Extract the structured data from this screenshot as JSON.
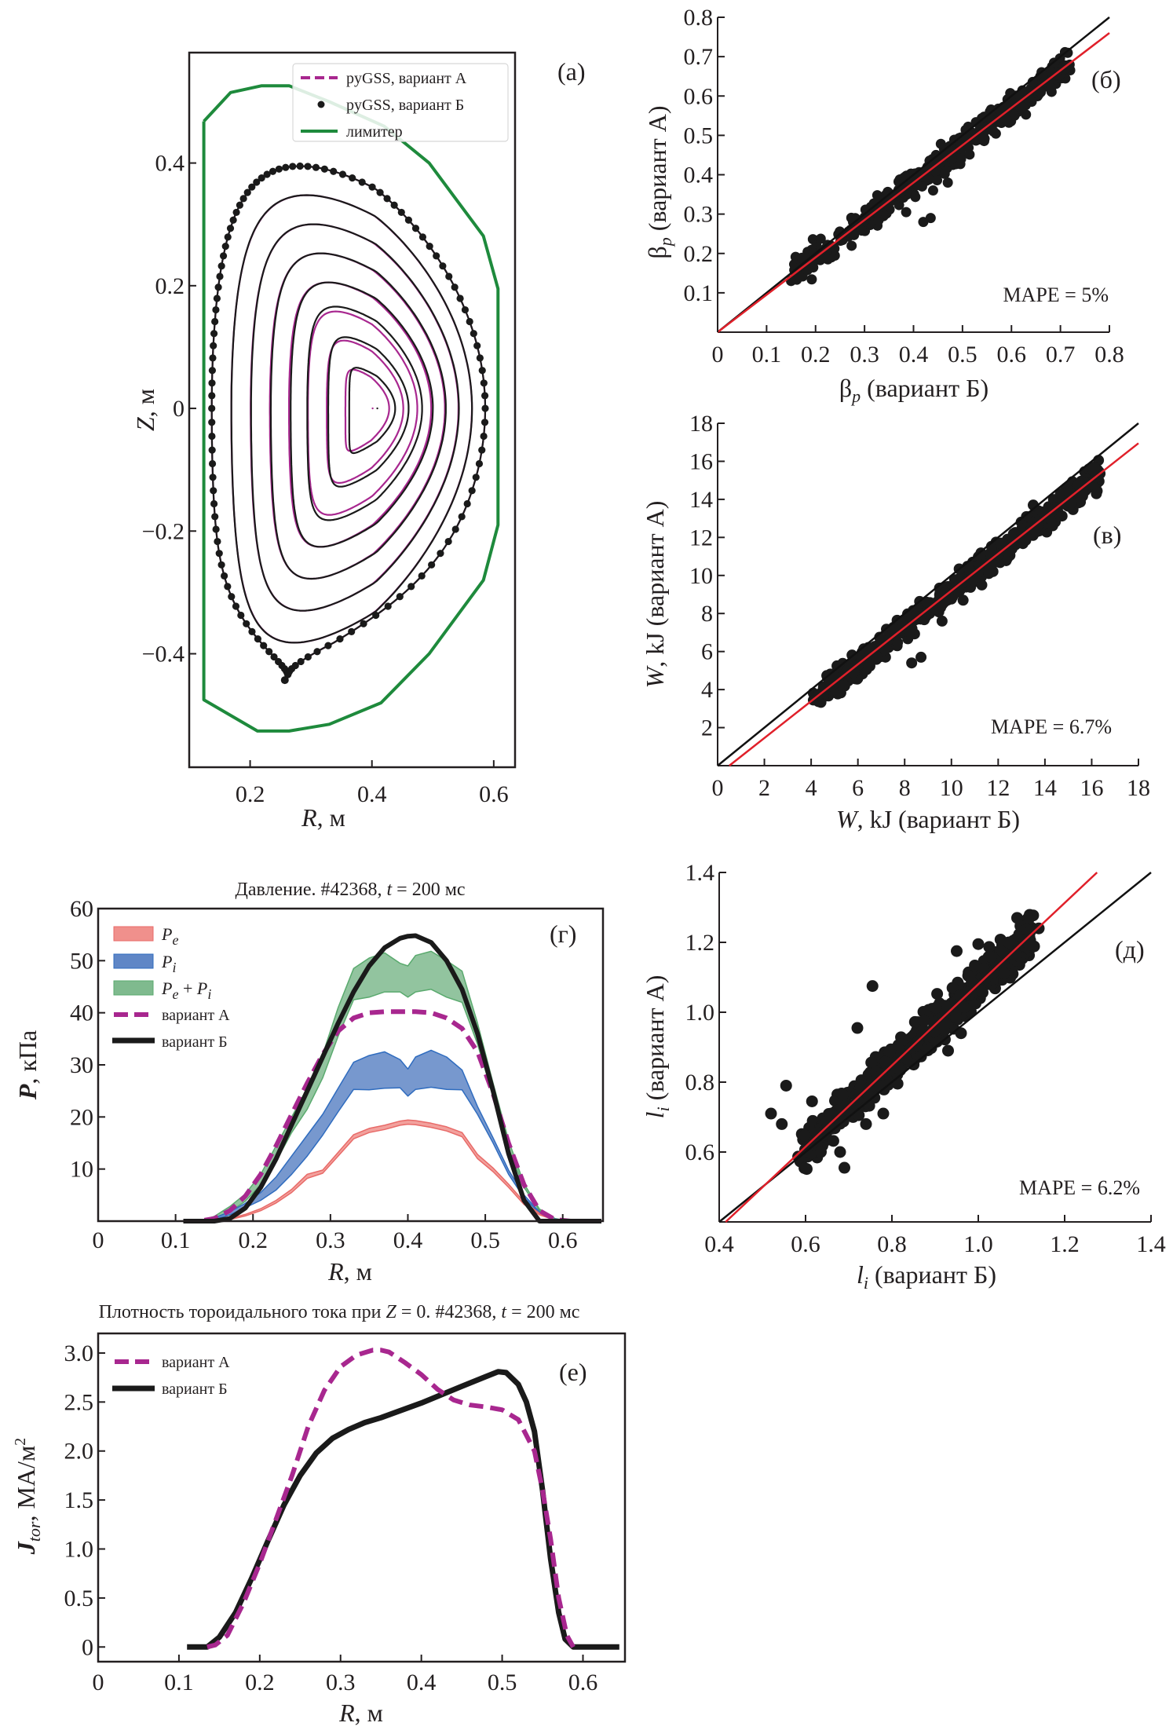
{
  "colors": {
    "variant_a": "#a8278f",
    "variant_b": "#1a1a1a",
    "limiter": "#1e8a3c",
    "fit": "#e0202a",
    "identity": "#111111",
    "scatter": "#1a1a1a",
    "pe_fill": "#f0908c",
    "pe_edge": "#e86a68",
    "pi_fill": "#5f86c6",
    "pi_edge": "#2f6cbf",
    "pepi_fill": "#7fba8e",
    "pepi_edge": "#5aaa6e"
  },
  "chart_data": [
    {
      "id": "a",
      "type": "line",
      "panel_label": "(a)",
      "title": "",
      "xlabel_italic": "R",
      "xlabel_rest": ", м",
      "ylabel_italic": "Z",
      "ylabel_rest": ", м",
      "xlim": [
        0.1,
        0.635
      ],
      "ylim": [
        -0.585,
        0.58
      ],
      "xticks": [
        0.2,
        0.4,
        0.6
      ],
      "xtick_labels": [
        "0.2",
        "0.4",
        "0.6"
      ],
      "yticks": [
        -0.4,
        -0.2,
        0,
        0.2,
        0.4
      ],
      "ytick_labels": [
        "−0.4",
        "−0.2",
        "0",
        "0.2",
        "0.4"
      ],
      "legend": [
        {
          "label": "pyGSS, вариант А",
          "style": "dashed"
        },
        {
          "label": "pyGSS, вариант Б",
          "style": "dots"
        },
        {
          "label": "лимитер",
          "style": "solid"
        }
      ],
      "legend_placement": "top-right",
      "limiter": [
        [
          0.124,
          0.468
        ],
        [
          0.168,
          0.515
        ],
        [
          0.219,
          0.526
        ],
        [
          0.264,
          0.526
        ],
        [
          0.33,
          0.5
        ],
        [
          0.42,
          0.46
        ],
        [
          0.494,
          0.4
        ],
        [
          0.583,
          0.281
        ],
        [
          0.607,
          0.195
        ],
        [
          0.607,
          -0.19
        ],
        [
          0.583,
          -0.28
        ],
        [
          0.494,
          -0.4
        ],
        [
          0.415,
          -0.48
        ],
        [
          0.33,
          -0.515
        ],
        [
          0.264,
          -0.526
        ],
        [
          0.212,
          -0.526
        ],
        [
          0.124,
          -0.475
        ],
        [
          0.124,
          0.468
        ]
      ],
      "magnetic_axis": [
        0.405,
        0.0
      ],
      "lcfs": {
        "r_in": 0.137,
        "r_out": 0.586,
        "r_top": 0.286,
        "z_top": 0.395,
        "r_bot": 0.262,
        "z_bot": -0.434
      },
      "flux_surface_levels": [
        1.0,
        0.88,
        0.76,
        0.64,
        0.52,
        0.4,
        0.28,
        0.16
      ],
      "variant_b_extra_point": [
        0.257,
        -0.443
      ]
    },
    {
      "id": "b",
      "type": "scatter",
      "panel_label": "(б)",
      "xlabel": "βp (вариант Б)",
      "xlabel_main": "β",
      "xlabel_sub": "p",
      "xlabel_rest": " (вариант Б)",
      "ylabel_main": "β",
      "ylabel_sub": "p",
      "ylabel_rest": " (вариант А)",
      "xlim": [
        0,
        0.8
      ],
      "ylim": [
        0,
        0.8
      ],
      "xticks": [
        0,
        0.1,
        0.2,
        0.3,
        0.4,
        0.5,
        0.6,
        0.7,
        0.8
      ],
      "xtick_labels": [
        "0",
        "0.1",
        "0.2",
        "0.3",
        "0.4",
        "0.5",
        "0.6",
        "0.7",
        "0.8"
      ],
      "yticks": [
        0.1,
        0.2,
        0.3,
        0.4,
        0.5,
        0.6,
        0.7,
        0.8
      ],
      "ytick_labels": [
        "0.1",
        "0.2",
        "0.3",
        "0.4",
        "0.5",
        "0.6",
        "0.7",
        "0.8"
      ],
      "annotation": "MAPE = 5%",
      "identity_line": [
        [
          0,
          0
        ],
        [
          0.8,
          0.8
        ]
      ],
      "fit_line": [
        [
          0,
          0
        ],
        [
          0.8,
          0.76
        ]
      ],
      "cloud": {
        "x_range": [
          0.14,
          0.72
        ],
        "slope": 0.95,
        "spread": 0.018,
        "count": 420
      },
      "outliers": [
        [
          0.385,
          0.305
        ],
        [
          0.42,
          0.28
        ],
        [
          0.435,
          0.29
        ],
        [
          0.44,
          0.36
        ],
        [
          0.47,
          0.38
        ],
        [
          0.66,
          0.61
        ],
        [
          0.71,
          0.67
        ],
        [
          0.15,
          0.13
        ]
      ]
    },
    {
      "id": "v",
      "type": "scatter",
      "panel_label": "(в)",
      "xlabel_italic": "W",
      "xlabel_rest": ", kJ (вариант Б)",
      "ylabel_italic": "W",
      "ylabel_rest": ", kJ (вариант А)",
      "xlim": [
        0,
        18
      ],
      "ylim": [
        0,
        18
      ],
      "xticks": [
        0,
        2,
        4,
        6,
        8,
        10,
        12,
        14,
        16,
        18
      ],
      "xtick_labels": [
        "0",
        "2",
        "4",
        "6",
        "8",
        "10",
        "12",
        "14",
        "16",
        "18"
      ],
      "yticks": [
        2,
        4,
        6,
        8,
        10,
        12,
        14,
        16,
        18
      ],
      "ytick_labels": [
        "2",
        "4",
        "6",
        "8",
        "10",
        "12",
        "14",
        "16",
        "18"
      ],
      "annotation": "MAPE = 6.7%",
      "identity_line": [
        [
          0,
          0
        ],
        [
          18,
          18
        ]
      ],
      "fit_line": [
        [
          0.5,
          0
        ],
        [
          18,
          16.95
        ]
      ],
      "cloud": {
        "x_range": [
          4.0,
          16.4
        ],
        "slope": 0.96,
        "spread": 0.35,
        "count": 520
      },
      "outliers": [
        [
          8.3,
          5.4
        ],
        [
          8.7,
          5.7
        ],
        [
          9.6,
          7.6
        ],
        [
          10.5,
          8.7
        ],
        [
          11.3,
          9.5
        ],
        [
          11.6,
          10.1
        ],
        [
          13.5,
          13.7
        ],
        [
          16.2,
          14.3
        ],
        [
          4.3,
          3.7
        ]
      ]
    },
    {
      "id": "d",
      "type": "scatter",
      "panel_label": "(д)",
      "xlabel_italic": "l",
      "xlabel_sub": "i",
      "xlabel_rest": "  (вариант Б)",
      "ylabel_italic": "l",
      "ylabel_sub": "i",
      "ylabel_rest": " (вариант А)",
      "xlim": [
        0.4,
        1.4
      ],
      "ylim": [
        0.4,
        1.4
      ],
      "xticks": [
        0.4,
        0.6,
        0.8,
        1.0,
        1.2,
        1.4
      ],
      "xtick_labels": [
        "0.4",
        "0.6",
        "0.8",
        "1.0",
        "1.2",
        "1.4"
      ],
      "yticks": [
        0.6,
        0.8,
        1.0,
        1.2,
        1.4
      ],
      "ytick_labels": [
        "0.6",
        "0.8",
        "1.0",
        "1.2",
        "1.4"
      ],
      "annotation": "MAPE = 6.2%",
      "identity_line": [
        [
          0.4,
          0.4
        ],
        [
          1.4,
          1.4
        ]
      ],
      "fit_line": [
        [
          0.415,
          0.4
        ],
        [
          1.275,
          1.4
        ]
      ],
      "cloud": {
        "x_range": [
          0.58,
          1.13
        ],
        "slope": 1.16,
        "spread": 0.03,
        "count": 520
      },
      "outliers": [
        [
          0.555,
          0.79
        ],
        [
          0.615,
          0.745
        ],
        [
          0.72,
          0.955
        ],
        [
          0.755,
          1.075
        ],
        [
          0.69,
          0.555
        ],
        [
          0.52,
          0.71
        ],
        [
          0.545,
          0.68
        ],
        [
          1.09,
          1.27
        ],
        [
          1.0,
          1.195
        ],
        [
          0.95,
          1.175
        ],
        [
          0.96,
          0.94
        ],
        [
          0.93,
          0.89
        ],
        [
          1.12,
          1.23
        ],
        [
          1.14,
          1.24
        ],
        [
          0.78,
          0.71
        ],
        [
          0.74,
          0.68
        ],
        [
          0.68,
          0.6
        ]
      ]
    },
    {
      "id": "g",
      "type": "area",
      "panel_label": "(г)",
      "title": "Давление. #42368, t = 200 мс",
      "title_pre": "Давление. #42368, ",
      "title_italic": "t",
      "title_post": " = 200 мс",
      "xlabel_italic": "R",
      "xlabel_rest": ", м",
      "ylabel_italic": "P",
      "ylabel_rest": ", кПа",
      "xlim": [
        0,
        0.652
      ],
      "ylim": [
        0,
        60
      ],
      "xticks": [
        0,
        0.1,
        0.2,
        0.3,
        0.4,
        0.5,
        0.6
      ],
      "xtick_labels": [
        "0",
        "0.1",
        "0.2",
        "0.3",
        "0.4",
        "0.5",
        "0.6"
      ],
      "yticks": [
        10,
        20,
        30,
        40,
        50,
        60
      ],
      "ytick_labels": [
        "10",
        "20",
        "30",
        "40",
        "50",
        "60"
      ],
      "legend": [
        {
          "label": "Pe",
          "main": "P",
          "sub": "e",
          "style": "fill-pe"
        },
        {
          "label": "Pi",
          "main": "P",
          "sub": "i",
          "style": "fill-pi"
        },
        {
          "label": "Pe + Pi",
          "main": "P",
          "sub": "e",
          "mid": " + ",
          "main2": "P",
          "sub2": "i",
          "style": "fill-pepi"
        },
        {
          "label": "вариант А",
          "style": "dashed"
        },
        {
          "label": "вариант Б",
          "style": "solid"
        }
      ],
      "legend_placement": "top-left",
      "x": [
        0.11,
        0.13,
        0.15,
        0.17,
        0.19,
        0.21,
        0.23,
        0.25,
        0.27,
        0.29,
        0.31,
        0.33,
        0.35,
        0.37,
        0.39,
        0.4,
        0.41,
        0.43,
        0.45,
        0.47,
        0.49,
        0.51,
        0.53,
        0.55,
        0.57,
        0.59,
        0.61,
        0.65
      ],
      "series": [
        {
          "name": "Pe_low",
          "values": [
            0,
            0,
            0,
            0.3,
            1.0,
            2.0,
            3.5,
            5.5,
            8.2,
            9.2,
            12.5,
            15.8,
            17.0,
            17.6,
            18.4,
            18.6,
            18.5,
            18.0,
            17.3,
            16.2,
            12.0,
            9.5,
            6.5,
            3.2,
            1.2,
            0.2,
            0,
            0
          ]
        },
        {
          "name": "Pe_high",
          "values": [
            0,
            0,
            0,
            0.5,
            1.3,
            2.4,
            4.0,
            6.1,
            9.0,
            9.8,
            13.2,
            16.6,
            17.8,
            18.4,
            19.2,
            19.4,
            19.3,
            18.8,
            18.1,
            17.0,
            12.8,
            10.2,
            7.1,
            3.7,
            1.5,
            0.3,
            0,
            0
          ]
        },
        {
          "name": "Pi_low",
          "values": [
            0,
            0,
            0.3,
            1.2,
            2.6,
            4.0,
            6.0,
            9.0,
            12.5,
            16.5,
            21.0,
            25.3,
            25.2,
            25.5,
            25.6,
            24.0,
            25.3,
            25.7,
            25.3,
            25.2,
            20.5,
            15.0,
            9.0,
            4.5,
            1.5,
            0.3,
            0,
            0
          ]
        },
        {
          "name": "Pi_high",
          "values": [
            0,
            0,
            0.6,
            1.8,
            3.4,
            5.5,
            8.5,
            12.5,
            16.5,
            20.5,
            25.5,
            30.5,
            31.8,
            32.5,
            31.0,
            29.2,
            31.5,
            32.8,
            31.5,
            29.0,
            22.0,
            16.0,
            9.8,
            5.0,
            1.8,
            0.4,
            0,
            0
          ]
        },
        {
          "name": "PePi_low",
          "values": [
            0,
            0,
            0.5,
            1.8,
            3.8,
            7.0,
            11.5,
            17.0,
            21.5,
            27.5,
            35.5,
            42.5,
            43.0,
            44.0,
            44.0,
            43.0,
            44.0,
            44.5,
            43.0,
            42.0,
            34.0,
            24.0,
            14.0,
            6.5,
            2.0,
            0.4,
            0,
            0
          ]
        },
        {
          "name": "PePi_high",
          "values": [
            0,
            0,
            0.9,
            2.8,
            5.2,
            9.0,
            14.5,
            20.0,
            25.5,
            32.0,
            41.0,
            48.5,
            50.5,
            51.5,
            49.5,
            49.0,
            51.0,
            51.8,
            50.0,
            48.0,
            38.0,
            26.5,
            15.5,
            7.2,
            2.3,
            0.5,
            0,
            0
          ]
        },
        {
          "name": "вариант А",
          "values": [
            0,
            0,
            0.5,
            2.0,
            4.8,
            9.0,
            14.5,
            20.5,
            26.5,
            32.0,
            36.5,
            39.0,
            40.0,
            40.2,
            40.2,
            40.2,
            40.2,
            40.0,
            39.0,
            37.0,
            32.5,
            24.5,
            15.0,
            7.0,
            2.0,
            0.3,
            0,
            0
          ]
        },
        {
          "name": "вариант Б",
          "values": [
            0,
            0,
            0,
            0.5,
            2.5,
            6.5,
            12.0,
            18.5,
            25.0,
            31.5,
            38.0,
            44.0,
            49.0,
            52.5,
            54.3,
            54.7,
            54.8,
            53.5,
            50.0,
            44.5,
            36.0,
            25.0,
            13.0,
            4.0,
            0,
            0,
            0,
            0
          ]
        }
      ]
    },
    {
      "id": "e",
      "type": "line",
      "panel_label": "(е)",
      "title": "Плотность тороидального тока при Z = 0. #42368, t = 200 мс",
      "title_pre": "Плотность тороидального тока при ",
      "title_italic1": "Z",
      "title_mid": " = 0. #42368, ",
      "title_italic2": "t",
      "title_post": " = 200 мс",
      "xlabel_italic": "R",
      "xlabel_rest": ", м",
      "ylabel_italic": "J",
      "ylabel_sub": "tor",
      "ylabel_rest": ", МА/м",
      "ylabel_sup": "2",
      "xlim": [
        0,
        0.652
      ],
      "ylim": [
        -0.15,
        3.2
      ],
      "xticks": [
        0,
        0.1,
        0.2,
        0.3,
        0.4,
        0.5,
        0.6
      ],
      "xtick_labels": [
        "0",
        "0.1",
        "0.2",
        "0.3",
        "0.4",
        "0.5",
        "0.6"
      ],
      "yticks": [
        0,
        0.5,
        1.0,
        1.5,
        2.0,
        2.5,
        3.0
      ],
      "ytick_labels": [
        "0",
        "0.5",
        "1.0",
        "1.5",
        "2.0",
        "2.5",
        "3.0"
      ],
      "legend": [
        {
          "label": "вариант А",
          "style": "dashed"
        },
        {
          "label": "вариант Б",
          "style": "solid"
        }
      ],
      "legend_placement": "top-left",
      "series": [
        {
          "name": "вариант А",
          "x": [
            0.135,
            0.145,
            0.16,
            0.18,
            0.2,
            0.22,
            0.24,
            0.26,
            0.28,
            0.3,
            0.32,
            0.34,
            0.35,
            0.36,
            0.38,
            0.4,
            0.42,
            0.44,
            0.46,
            0.48,
            0.5,
            0.52,
            0.54,
            0.55,
            0.56,
            0.57,
            0.58,
            0.588
          ],
          "y": [
            0.0,
            0.02,
            0.12,
            0.45,
            0.85,
            1.3,
            1.75,
            2.25,
            2.62,
            2.86,
            2.98,
            3.03,
            3.03,
            3.01,
            2.9,
            2.78,
            2.63,
            2.52,
            2.47,
            2.45,
            2.42,
            2.32,
            2.0,
            1.6,
            1.1,
            0.5,
            0.12,
            0.0
          ]
        },
        {
          "name": "вариант Б",
          "x": [
            0.11,
            0.135,
            0.15,
            0.17,
            0.19,
            0.21,
            0.23,
            0.25,
            0.27,
            0.29,
            0.31,
            0.33,
            0.35,
            0.4,
            0.45,
            0.48,
            0.495,
            0.505,
            0.52,
            0.53,
            0.54,
            0.55,
            0.56,
            0.57,
            0.578,
            0.588,
            0.645
          ],
          "y": [
            0.0,
            0.0,
            0.1,
            0.35,
            0.7,
            1.08,
            1.45,
            1.75,
            1.98,
            2.13,
            2.22,
            2.29,
            2.34,
            2.49,
            2.66,
            2.76,
            2.81,
            2.8,
            2.68,
            2.5,
            2.2,
            1.6,
            0.9,
            0.35,
            0.08,
            0.0,
            0.0
          ]
        }
      ]
    }
  ]
}
